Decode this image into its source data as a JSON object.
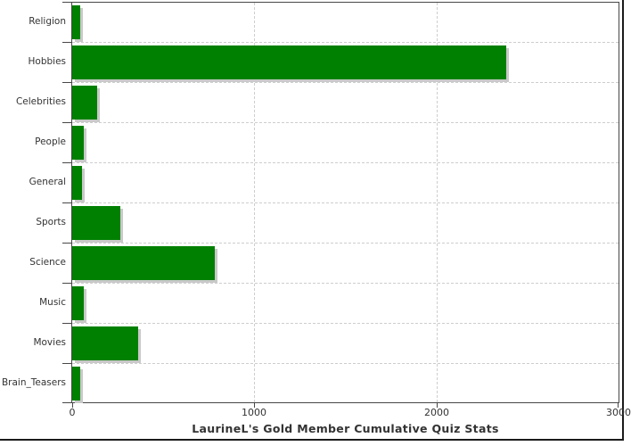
{
  "chart_data": {
    "type": "bar",
    "orientation": "horizontal",
    "title": "LaurineL's Gold Member Cumulative Quiz Stats",
    "categories": [
      "Religion",
      "Hobbies",
      "Celebrities",
      "People",
      "General",
      "Sports",
      "Science",
      "Music",
      "Movies",
      "Brain_Teasers"
    ],
    "values": [
      45,
      2385,
      135,
      65,
      55,
      265,
      785,
      65,
      360,
      45
    ],
    "xlabel": "",
    "ylabel": "",
    "xlim": [
      0,
      3000
    ],
    "x_ticks": [
      {
        "label": "0",
        "value": 0
      },
      {
        "label": "1000",
        "value": 1000
      },
      {
        "label": "2000",
        "value": 2000
      },
      {
        "label": "3000",
        "value": 3000
      }
    ],
    "grid": "dashed",
    "legend": "none",
    "colors": {
      "bar": "#008000",
      "bar_shadow": "#c9c9c9",
      "gridline": "#cdcdcd",
      "frame": "#474747",
      "text": "#333333",
      "outer_border": "#1b1b1b"
    }
  }
}
